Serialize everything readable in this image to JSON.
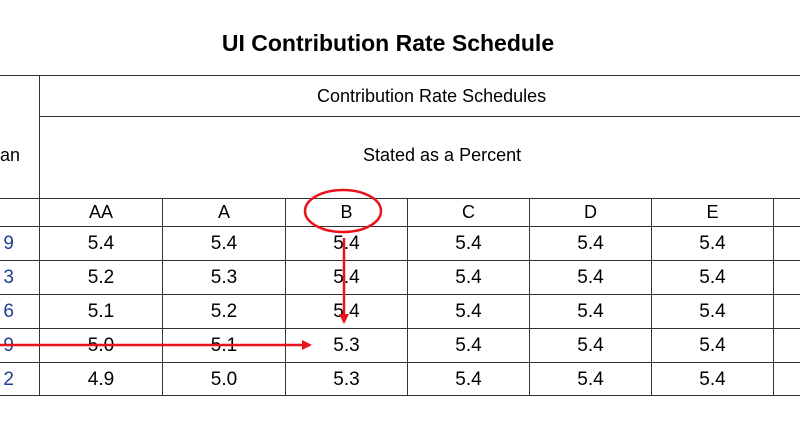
{
  "title": "UI Contribution Rate Schedule",
  "left_header_fragment": "an",
  "group_header": "Contribution Rate Schedules",
  "subheader": "Stated as a Percent",
  "columns": [
    "AA",
    "A",
    "B",
    "C",
    "D",
    "E"
  ],
  "row_fragments": [
    "9",
    "3",
    "6",
    "9",
    "2"
  ],
  "rows": [
    [
      "5.4",
      "5.4",
      "5.4",
      "5.4",
      "5.4",
      "5.4"
    ],
    [
      "5.2",
      "5.3",
      "5.4",
      "5.4",
      "5.4",
      "5.4"
    ],
    [
      "5.1",
      "5.2",
      "5.4",
      "5.4",
      "5.4",
      "5.4"
    ],
    [
      "5.0",
      "5.1",
      "5.3",
      "5.4",
      "5.4",
      "5.4"
    ],
    [
      "4.9",
      "5.0",
      "5.3",
      "5.4",
      "5.4",
      "5.4"
    ]
  ],
  "annotation_color": "#e8141b",
  "text_blue": "#1f3f8f"
}
